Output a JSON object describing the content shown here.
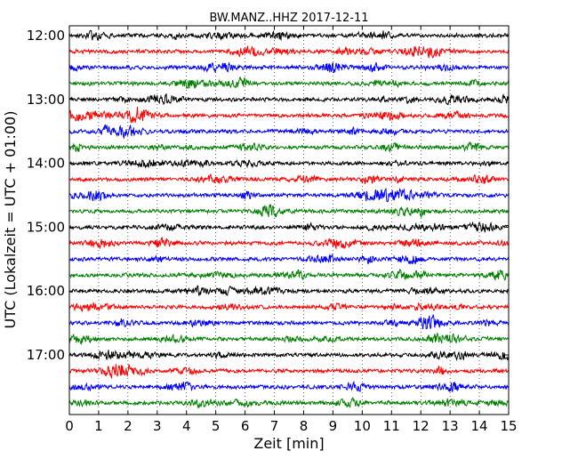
{
  "chart_data": {
    "type": "line",
    "title": "BW.MANZ..HHZ 2017-12-11",
    "xlabel": "Zeit  [min]",
    "ylabel": "UTC (Lokalzeit = UTC + 01:00)",
    "xlim": [
      0,
      15
    ],
    "x_ticks": [
      "0",
      "1",
      "2",
      "3",
      "4",
      "5",
      "6",
      "7",
      "8",
      "9",
      "10",
      "11",
      "12",
      "13",
      "14",
      "15"
    ],
    "y_tick_labels": [
      "12:00",
      "13:00",
      "14:00",
      "15:00",
      "16:00",
      "17:00"
    ],
    "grid": "vertical dotted lines at each minute",
    "color_cycle": [
      "#000000",
      "#ff0000",
      "#0000ff",
      "#007f00"
    ],
    "series": [
      {
        "start": "12:00"
      },
      {
        "start": "12:15"
      },
      {
        "start": "12:30"
      },
      {
        "start": "12:45"
      },
      {
        "start": "13:00"
      },
      {
        "start": "13:15"
      },
      {
        "start": "13:30"
      },
      {
        "start": "13:45"
      },
      {
        "start": "14:00"
      },
      {
        "start": "14:15"
      },
      {
        "start": "14:30"
      },
      {
        "start": "14:45"
      },
      {
        "start": "15:00"
      },
      {
        "start": "15:15"
      },
      {
        "start": "15:30"
      },
      {
        "start": "15:45"
      },
      {
        "start": "16:00"
      },
      {
        "start": "16:15"
      },
      {
        "start": "16:30"
      },
      {
        "start": "16:45"
      },
      {
        "start": "17:00"
      },
      {
        "start": "17:15"
      },
      {
        "start": "17:30"
      },
      {
        "start": "17:45"
      }
    ]
  }
}
